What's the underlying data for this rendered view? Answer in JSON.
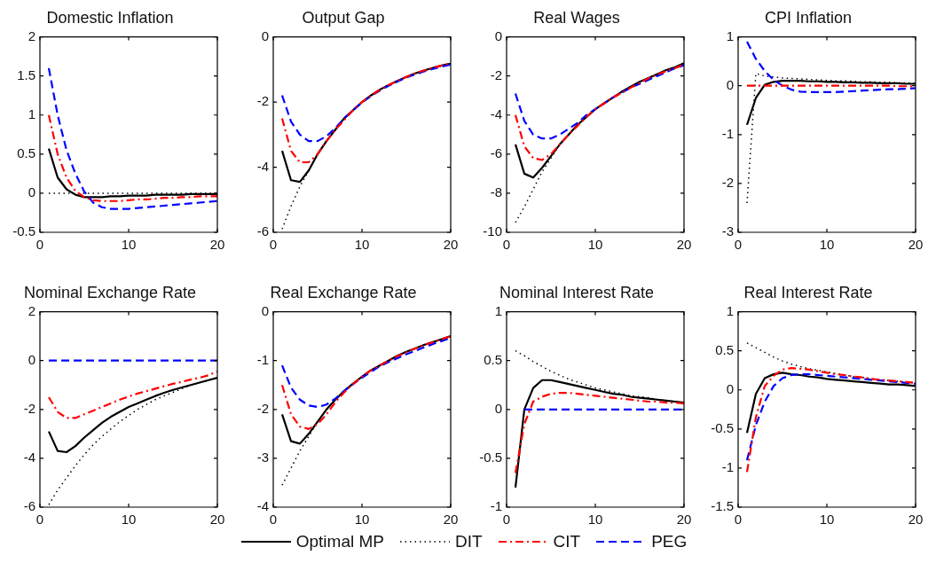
{
  "chart_data": [
    {
      "type": "line",
      "title": "Domestic Inflation",
      "x": [
        1,
        2,
        3,
        4,
        5,
        6,
        7,
        8,
        9,
        10,
        11,
        12,
        13,
        14,
        15,
        16,
        17,
        18,
        19,
        20
      ],
      "xlim": [
        0,
        20
      ],
      "xticks": [
        0,
        10,
        20
      ],
      "ylim": [
        -0.5,
        2
      ],
      "yticks": [
        -0.5,
        0,
        0.5,
        1,
        1.5,
        2
      ],
      "grid": false,
      "marker": "none",
      "legend": "bottom",
      "series": [
        {
          "name": "Optimal MP",
          "color": "#000000",
          "line_style": "solid",
          "values": [
            0.57,
            0.2,
            0.05,
            -0.02,
            -0.05,
            -0.05,
            -0.05,
            -0.04,
            -0.04,
            -0.03,
            -0.03,
            -0.03,
            -0.02,
            -0.02,
            -0.02,
            -0.02,
            -0.01,
            -0.01,
            -0.01,
            -0.01
          ]
        },
        {
          "name": "DIT",
          "color": "#000000",
          "line_style": "dotted",
          "values": [
            0,
            0,
            0,
            0,
            0,
            0,
            0,
            0,
            0,
            0,
            0,
            0,
            0,
            0,
            0,
            0,
            0,
            0,
            0,
            0
          ]
        },
        {
          "name": "CIT",
          "color": "#ff0000",
          "line_style": "dashdot",
          "values": [
            1.0,
            0.5,
            0.2,
            0.03,
            -0.05,
            -0.09,
            -0.1,
            -0.1,
            -0.1,
            -0.09,
            -0.08,
            -0.08,
            -0.07,
            -0.06,
            -0.06,
            -0.05,
            -0.05,
            -0.04,
            -0.04,
            -0.04
          ]
        },
        {
          "name": "PEG",
          "color": "#0000ff",
          "line_style": "dashed",
          "values": [
            1.6,
            1.0,
            0.55,
            0.25,
            0.02,
            -0.12,
            -0.18,
            -0.2,
            -0.2,
            -0.2,
            -0.19,
            -0.18,
            -0.17,
            -0.16,
            -0.15,
            -0.14,
            -0.13,
            -0.12,
            -0.11,
            -0.1
          ]
        }
      ]
    },
    {
      "type": "line",
      "title": "Output Gap",
      "x": [
        1,
        2,
        3,
        4,
        5,
        6,
        7,
        8,
        9,
        10,
        11,
        12,
        13,
        14,
        15,
        16,
        17,
        18,
        19,
        20
      ],
      "xlim": [
        0,
        20
      ],
      "xticks": [
        0,
        10,
        20
      ],
      "ylim": [
        -6,
        0
      ],
      "yticks": [
        -6,
        -4,
        -2,
        0
      ],
      "grid": false,
      "marker": "none",
      "series": [
        {
          "color": "#000000",
          "line_style": "solid",
          "values": [
            -3.5,
            -4.4,
            -4.45,
            -4.1,
            -3.6,
            -3.2,
            -2.85,
            -2.5,
            -2.25,
            -2.0,
            -1.8,
            -1.62,
            -1.48,
            -1.35,
            -1.23,
            -1.12,
            -1.03,
            -0.95,
            -0.88,
            -0.82
          ]
        },
        {
          "color": "#000000",
          "line_style": "dotted",
          "values": [
            -5.9,
            -5.2,
            -4.6,
            -4.1,
            -3.6,
            -3.2,
            -2.85,
            -2.5,
            -2.25,
            -2.0,
            -1.8,
            -1.62,
            -1.48,
            -1.35,
            -1.23,
            -1.12,
            -1.03,
            -0.95,
            -0.88,
            -0.82
          ]
        },
        {
          "color": "#ff0000",
          "line_style": "dashdot",
          "values": [
            -2.5,
            -3.5,
            -3.85,
            -3.85,
            -3.6,
            -3.2,
            -2.85,
            -2.55,
            -2.25,
            -2.0,
            -1.8,
            -1.63,
            -1.48,
            -1.35,
            -1.23,
            -1.12,
            -1.03,
            -0.95,
            -0.88,
            -0.8
          ]
        },
        {
          "color": "#0000ff",
          "line_style": "dashed",
          "values": [
            -1.8,
            -2.6,
            -3.0,
            -3.2,
            -3.2,
            -3.05,
            -2.8,
            -2.5,
            -2.25,
            -2.02,
            -1.82,
            -1.65,
            -1.5,
            -1.37,
            -1.25,
            -1.15,
            -1.06,
            -0.98,
            -0.91,
            -0.85
          ]
        }
      ]
    },
    {
      "type": "line",
      "title": "Real Wages",
      "x": [
        1,
        2,
        3,
        4,
        5,
        6,
        7,
        8,
        9,
        10,
        11,
        12,
        13,
        14,
        15,
        16,
        17,
        18,
        19,
        20
      ],
      "xlim": [
        0,
        20
      ],
      "xticks": [
        0,
        10,
        20
      ],
      "ylim": [
        -10,
        0
      ],
      "yticks": [
        -10,
        -8,
        -6,
        -4,
        -2,
        0
      ],
      "grid": false,
      "marker": "none",
      "series": [
        {
          "color": "#000000",
          "line_style": "solid",
          "values": [
            -5.5,
            -7.0,
            -7.2,
            -6.7,
            -6.1,
            -5.5,
            -5.0,
            -4.5,
            -4.1,
            -3.7,
            -3.4,
            -3.1,
            -2.8,
            -2.55,
            -2.3,
            -2.1,
            -1.9,
            -1.7,
            -1.55,
            -1.35
          ]
        },
        {
          "color": "#000000",
          "line_style": "dotted",
          "values": [
            -9.5,
            -8.7,
            -7.8,
            -6.9,
            -6.2,
            -5.5,
            -5.0,
            -4.5,
            -4.1,
            -3.7,
            -3.4,
            -3.1,
            -2.8,
            -2.55,
            -2.3,
            -2.1,
            -1.9,
            -1.7,
            -1.55,
            -1.35
          ]
        },
        {
          "color": "#ff0000",
          "line_style": "dashdot",
          "values": [
            -4.0,
            -5.6,
            -6.2,
            -6.3,
            -6.0,
            -5.5,
            -5.0,
            -4.55,
            -4.1,
            -3.7,
            -3.4,
            -3.1,
            -2.85,
            -2.6,
            -2.35,
            -2.12,
            -1.92,
            -1.75,
            -1.6,
            -1.4
          ]
        },
        {
          "color": "#0000ff",
          "line_style": "dashed",
          "values": [
            -2.9,
            -4.3,
            -5.0,
            -5.2,
            -5.2,
            -5.0,
            -4.7,
            -4.4,
            -4.0,
            -3.7,
            -3.4,
            -3.1,
            -2.85,
            -2.6,
            -2.4,
            -2.2,
            -2.0,
            -1.8,
            -1.6,
            -1.45
          ]
        }
      ]
    },
    {
      "type": "line",
      "title": "CPI Inflation",
      "x": [
        1,
        2,
        3,
        4,
        5,
        6,
        7,
        8,
        9,
        10,
        11,
        12,
        13,
        14,
        15,
        16,
        17,
        18,
        19,
        20
      ],
      "xlim": [
        0,
        20
      ],
      "xticks": [
        0,
        10,
        20
      ],
      "ylim": [
        -3,
        1
      ],
      "yticks": [
        -3,
        -2,
        -1,
        0,
        1
      ],
      "grid": false,
      "marker": "none",
      "series": [
        {
          "color": "#000000",
          "line_style": "solid",
          "values": [
            -0.8,
            -0.25,
            0.02,
            0.08,
            0.1,
            0.1,
            0.1,
            0.09,
            0.09,
            0.08,
            0.08,
            0.07,
            0.07,
            0.06,
            0.06,
            0.05,
            0.05,
            0.05,
            0.04,
            0.04
          ]
        },
        {
          "color": "#000000",
          "line_style": "dotted",
          "values": [
            -2.4,
            0.25,
            0.2,
            0.18,
            0.16,
            0.15,
            0.14,
            0.13,
            0.12,
            0.11,
            0.1,
            0.1,
            0.09,
            0.08,
            0.08,
            0.07,
            0.07,
            0.06,
            0.06,
            0.05
          ]
        },
        {
          "color": "#ff0000",
          "line_style": "dashdot",
          "values": [
            0,
            0,
            0,
            0,
            0,
            0,
            0,
            0,
            0,
            0,
            0,
            0,
            0,
            0,
            0,
            0,
            0,
            -0.01,
            -0.01,
            -0.01
          ]
        },
        {
          "color": "#0000ff",
          "line_style": "dashed",
          "values": [
            0.9,
            0.55,
            0.3,
            0.12,
            0.0,
            -0.08,
            -0.12,
            -0.13,
            -0.13,
            -0.13,
            -0.13,
            -0.12,
            -0.11,
            -0.1,
            -0.09,
            -0.08,
            -0.07,
            -0.07,
            -0.06,
            -0.05
          ]
        }
      ]
    },
    {
      "type": "line",
      "title": "Nominal Exchange Rate",
      "x": [
        1,
        2,
        3,
        4,
        5,
        6,
        7,
        8,
        9,
        10,
        11,
        12,
        13,
        14,
        15,
        16,
        17,
        18,
        19,
        20
      ],
      "xlim": [
        0,
        20
      ],
      "xticks": [
        0,
        10,
        20
      ],
      "ylim": [
        -6,
        2
      ],
      "yticks": [
        -6,
        -4,
        -2,
        0,
        2
      ],
      "grid": false,
      "marker": "none",
      "series": [
        {
          "color": "#000000",
          "line_style": "solid",
          "values": [
            -2.9,
            -3.7,
            -3.75,
            -3.5,
            -3.15,
            -2.85,
            -2.55,
            -2.3,
            -2.1,
            -1.9,
            -1.75,
            -1.6,
            -1.45,
            -1.32,
            -1.2,
            -1.1,
            -1.0,
            -0.9,
            -0.8,
            -0.7
          ]
        },
        {
          "color": "#000000",
          "line_style": "dotted",
          "values": [
            -5.9,
            -5.3,
            -4.8,
            -4.3,
            -3.85,
            -3.45,
            -3.1,
            -2.8,
            -2.5,
            -2.25,
            -2.0,
            -1.8,
            -1.6,
            -1.45,
            -1.3,
            -1.15,
            -1.0,
            -0.9,
            -0.8,
            -0.7
          ]
        },
        {
          "color": "#ff0000",
          "line_style": "dashdot",
          "values": [
            -1.5,
            -2.1,
            -2.35,
            -2.35,
            -2.2,
            -2.05,
            -1.9,
            -1.75,
            -1.6,
            -1.47,
            -1.35,
            -1.25,
            -1.15,
            -1.05,
            -0.95,
            -0.87,
            -0.78,
            -0.7,
            -0.6,
            -0.45
          ]
        },
        {
          "color": "#0000ff",
          "line_style": "dashed",
          "values": [
            0,
            0,
            0,
            0,
            0,
            0,
            0,
            0,
            0,
            0,
            0,
            0,
            0,
            0,
            0,
            0,
            0,
            0,
            0,
            0
          ]
        }
      ]
    },
    {
      "type": "line",
      "title": "Real Exchange Rate",
      "x": [
        1,
        2,
        3,
        4,
        5,
        6,
        7,
        8,
        9,
        10,
        11,
        12,
        13,
        14,
        15,
        16,
        17,
        18,
        19,
        20
      ],
      "xlim": [
        0,
        20
      ],
      "xticks": [
        0,
        10,
        20
      ],
      "ylim": [
        -4,
        0
      ],
      "yticks": [
        -4,
        -3,
        -2,
        -1,
        0
      ],
      "grid": false,
      "marker": "none",
      "series": [
        {
          "color": "#000000",
          "line_style": "solid",
          "values": [
            -2.1,
            -2.65,
            -2.7,
            -2.5,
            -2.25,
            -2.0,
            -1.8,
            -1.62,
            -1.47,
            -1.33,
            -1.2,
            -1.1,
            -1.0,
            -0.9,
            -0.82,
            -0.75,
            -0.68,
            -0.62,
            -0.56,
            -0.5
          ]
        },
        {
          "color": "#000000",
          "line_style": "dotted",
          "values": [
            -3.55,
            -3.2,
            -2.85,
            -2.55,
            -2.25,
            -2.0,
            -1.8,
            -1.62,
            -1.47,
            -1.33,
            -1.2,
            -1.1,
            -1.0,
            -0.9,
            -0.82,
            -0.75,
            -0.68,
            -0.62,
            -0.56,
            -0.5
          ]
        },
        {
          "color": "#ff0000",
          "line_style": "dashdot",
          "values": [
            -1.5,
            -2.1,
            -2.35,
            -2.4,
            -2.3,
            -2.1,
            -1.85,
            -1.65,
            -1.48,
            -1.33,
            -1.2,
            -1.1,
            -1.0,
            -0.91,
            -0.83,
            -0.75,
            -0.68,
            -0.62,
            -0.56,
            -0.5
          ]
        },
        {
          "color": "#0000ff",
          "line_style": "dashed",
          "values": [
            -1.1,
            -1.55,
            -1.8,
            -1.92,
            -1.95,
            -1.9,
            -1.78,
            -1.62,
            -1.48,
            -1.35,
            -1.23,
            -1.12,
            -1.03,
            -0.95,
            -0.87,
            -0.8,
            -0.73,
            -0.66,
            -0.6,
            -0.53
          ]
        }
      ]
    },
    {
      "type": "line",
      "title": "Nominal Interest Rate",
      "x": [
        1,
        2,
        3,
        4,
        5,
        6,
        7,
        8,
        9,
        10,
        11,
        12,
        13,
        14,
        15,
        16,
        17,
        18,
        19,
        20
      ],
      "xlim": [
        0,
        20
      ],
      "xticks": [
        0,
        10,
        20
      ],
      "ylim": [
        -1,
        1
      ],
      "yticks": [
        -1,
        -0.5,
        0,
        0.5,
        1
      ],
      "grid": false,
      "marker": "none",
      "series": [
        {
          "color": "#000000",
          "line_style": "solid",
          "values": [
            -0.8,
            0.0,
            0.22,
            0.3,
            0.3,
            0.28,
            0.26,
            0.24,
            0.22,
            0.2,
            0.18,
            0.16,
            0.15,
            0.13,
            0.12,
            0.11,
            0.1,
            0.09,
            0.08,
            0.07
          ]
        },
        {
          "color": "#000000",
          "line_style": "dotted",
          "values": [
            0.6,
            0.55,
            0.49,
            0.44,
            0.39,
            0.35,
            0.31,
            0.28,
            0.25,
            0.22,
            0.2,
            0.18,
            0.16,
            0.14,
            0.13,
            0.12,
            0.1,
            0.09,
            0.08,
            0.07
          ]
        },
        {
          "color": "#ff0000",
          "line_style": "dashdot",
          "values": [
            -0.65,
            -0.15,
            0.08,
            0.13,
            0.16,
            0.17,
            0.17,
            0.16,
            0.15,
            0.14,
            0.13,
            0.12,
            0.11,
            0.1,
            0.09,
            0.08,
            0.08,
            0.07,
            0.07,
            0.06
          ]
        },
        {
          "color": "#0000ff",
          "line_style": "dashed",
          "values": [
            null,
            0,
            0,
            0,
            0,
            0,
            0,
            0,
            0,
            0,
            0,
            0,
            0,
            0,
            0,
            0,
            0,
            0,
            0,
            0
          ]
        }
      ]
    },
    {
      "type": "line",
      "title": "Real Interest Rate",
      "x": [
        1,
        2,
        3,
        4,
        5,
        6,
        7,
        8,
        9,
        10,
        11,
        12,
        13,
        14,
        15,
        16,
        17,
        18,
        19,
        20
      ],
      "xlim": [
        0,
        20
      ],
      "xticks": [
        0,
        10,
        20
      ],
      "ylim": [
        -1.5,
        1
      ],
      "yticks": [
        -1.5,
        -1,
        -0.5,
        0,
        0.5,
        1
      ],
      "grid": false,
      "marker": "none",
      "series": [
        {
          "color": "#000000",
          "line_style": "solid",
          "values": [
            -0.55,
            -0.05,
            0.15,
            0.2,
            0.22,
            0.2,
            0.19,
            0.17,
            0.16,
            0.14,
            0.13,
            0.12,
            0.11,
            0.1,
            0.09,
            0.08,
            0.07,
            0.07,
            0.06,
            0.05
          ]
        },
        {
          "color": "#000000",
          "line_style": "dotted",
          "values": [
            0.6,
            0.54,
            0.48,
            0.42,
            0.37,
            0.33,
            0.3,
            0.27,
            0.25,
            0.23,
            0.21,
            0.19,
            0.17,
            0.16,
            0.14,
            0.13,
            0.12,
            0.11,
            0.1,
            0.09
          ]
        },
        {
          "color": "#ff0000",
          "line_style": "dashdot",
          "values": [
            -1.05,
            -0.35,
            0.05,
            0.18,
            0.26,
            0.28,
            0.27,
            0.26,
            0.24,
            0.22,
            0.2,
            0.19,
            0.17,
            0.16,
            0.14,
            0.13,
            0.12,
            0.11,
            0.1,
            0.09
          ]
        },
        {
          "color": "#0000ff",
          "line_style": "dashed",
          "values": [
            -0.9,
            -0.45,
            -0.15,
            0.05,
            0.15,
            0.19,
            0.2,
            0.2,
            0.19,
            0.18,
            0.17,
            0.16,
            0.15,
            0.14,
            0.13,
            0.12,
            0.11,
            0.1,
            0.09,
            0.08
          ]
        }
      ]
    }
  ]
}
